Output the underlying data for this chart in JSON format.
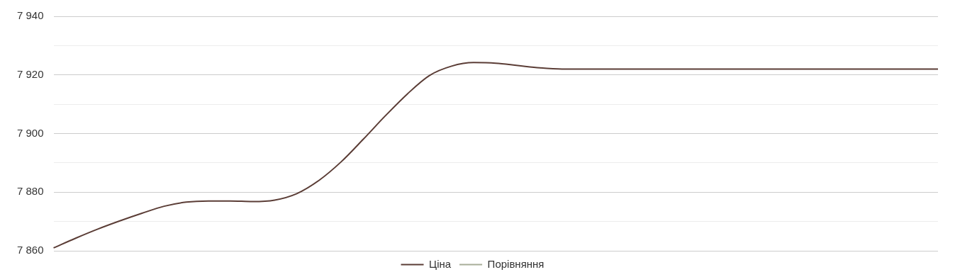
{
  "chart_data": {
    "type": "line",
    "categories": [
      null,
      null,
      null,
      null,
      null,
      null,
      null,
      null,
      null,
      null,
      null,
      null,
      null,
      null,
      null,
      null,
      null,
      null,
      null,
      null,
      null,
      null,
      null,
      null,
      null,
      null,
      null,
      null,
      null,
      null,
      null,
      null,
      null,
      null,
      null,
      null,
      null,
      null,
      null,
      null,
      null
    ],
    "series": [
      {
        "name": "Ціна",
        "color": "#5b3d36",
        "values": [
          7861,
          7864.3,
          7867.4,
          7870.2,
          7872.8,
          7875.2,
          7876.6,
          7877,
          7877,
          7876.8,
          7877.3,
          7879.5,
          7884,
          7890.3,
          7898,
          7906,
          7913.5,
          7919.8,
          7923,
          7924.2,
          7924,
          7923.2,
          7922.4,
          7922,
          7922,
          7922,
          7922,
          7922,
          7922,
          7922,
          7922,
          7922,
          7922,
          7922,
          7922,
          7922,
          7922,
          7922,
          7922,
          7922,
          7922
        ]
      },
      {
        "name": "Порівняння",
        "color": "#a8ad98",
        "values": [
          null,
          null,
          null,
          null,
          null,
          null,
          null,
          null,
          null,
          null,
          null,
          null,
          null,
          null,
          null,
          null,
          null,
          null,
          null,
          null,
          null,
          null,
          null,
          null,
          null,
          null,
          null,
          null,
          null,
          null,
          null,
          null,
          null,
          null,
          null,
          null,
          null,
          null,
          null,
          null,
          null
        ]
      }
    ],
    "ylim": [
      7860,
      7940
    ],
    "yticks": [
      {
        "value": 7860,
        "label": "7 860"
      },
      {
        "value": 7870,
        "label": null
      },
      {
        "value": 7880,
        "label": "7 880"
      },
      {
        "value": 7890,
        "label": null
      },
      {
        "value": 7900,
        "label": "7 900"
      },
      {
        "value": 7910,
        "label": null
      },
      {
        "value": 7920,
        "label": "7 920"
      },
      {
        "value": 7930,
        "label": null
      },
      {
        "value": 7940,
        "label": "7 940"
      }
    ],
    "tick_labels": "y",
    "grid": "y",
    "legend": "bottom",
    "marker": "none",
    "line_style": "solid"
  }
}
